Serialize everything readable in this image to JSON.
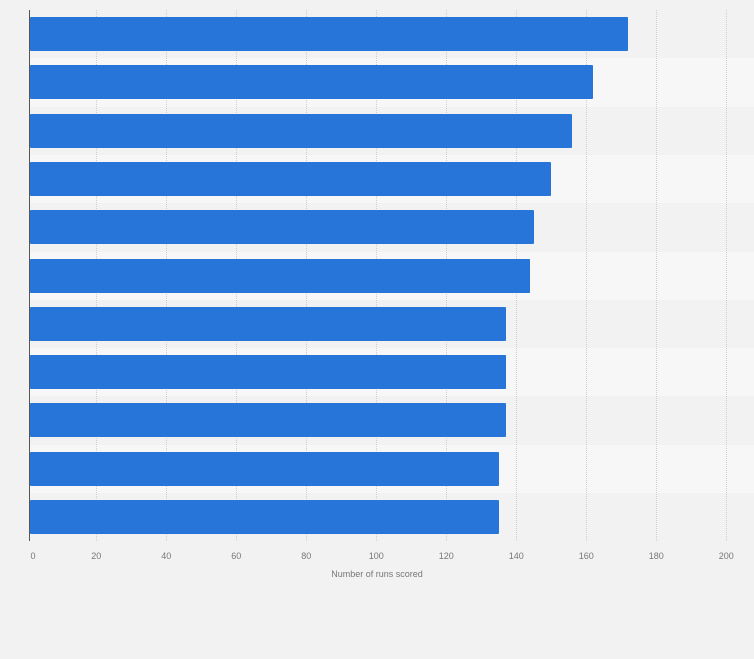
{
  "chart_data": {
    "type": "bar",
    "orientation": "horizontal",
    "title": "",
    "xlabel": "Number of runs scored",
    "ylabel": "",
    "xlim": [
      0,
      200
    ],
    "x_ticks": [
      "0",
      "20",
      "40",
      "60",
      "80",
      "100",
      "120",
      "140",
      "160",
      "180",
      "200"
    ],
    "grid": true,
    "legend": null,
    "categories": [
      "",
      "",
      "",
      "",
      "",
      "",
      "",
      "",
      "",
      "",
      ""
    ],
    "values": [
      172,
      162,
      156,
      150,
      145,
      144,
      137,
      137,
      137,
      135,
      135
    ],
    "bar_color": "#2775d9"
  },
  "colors": {
    "background": "#f2f2f2",
    "band_alt": "#f7f7f7",
    "bar": "#2775d9",
    "axis": "#555555",
    "tick_text": "#777777"
  }
}
